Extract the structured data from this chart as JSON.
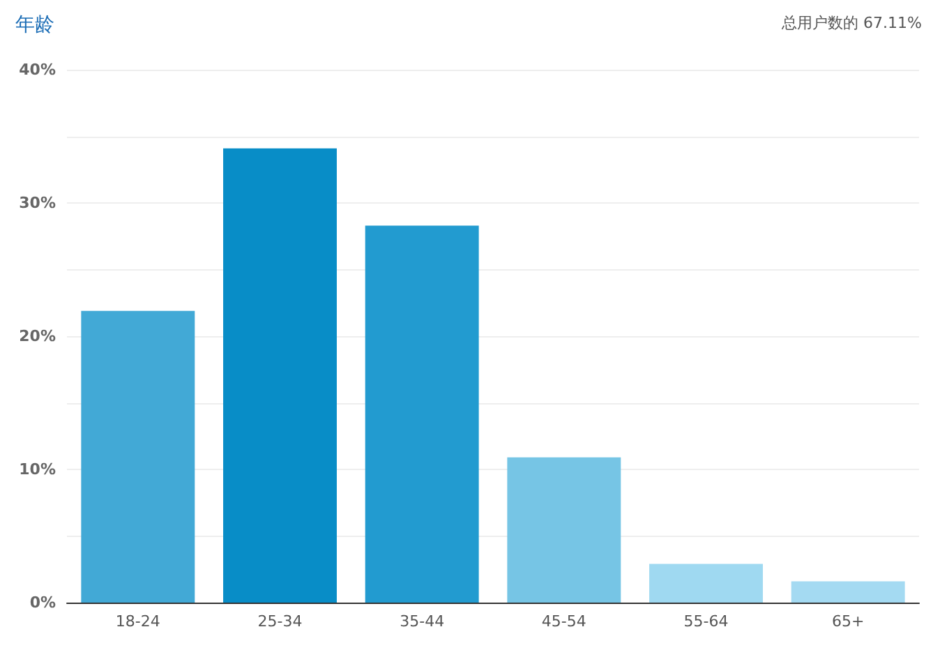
{
  "chart_data": {
    "type": "bar",
    "title": "年龄",
    "subtitle": "总用户数的 67.11%",
    "categories": [
      "18-24",
      "25-34",
      "35-44",
      "45-54",
      "55-64",
      "65+"
    ],
    "values": [
      21.9,
      34.1,
      28.3,
      10.9,
      2.9,
      1.6
    ],
    "colors": [
      "#42a9d6",
      "#088dc7",
      "#229bd0",
      "#76c5e5",
      "#9fd9f1",
      "#a4daf2"
    ],
    "ylim": [
      0,
      40
    ],
    "yticks": [
      {
        "value": 0,
        "label": "0%"
      },
      {
        "value": 5,
        "label": null
      },
      {
        "value": 10,
        "label": "10%"
      },
      {
        "value": 15,
        "label": null
      },
      {
        "value": 20,
        "label": "20%"
      },
      {
        "value": 25,
        "label": null
      },
      {
        "value": 30,
        "label": "30%"
      },
      {
        "value": 35,
        "label": null
      },
      {
        "value": 40,
        "label": "40%"
      }
    ],
    "grid": "y"
  }
}
